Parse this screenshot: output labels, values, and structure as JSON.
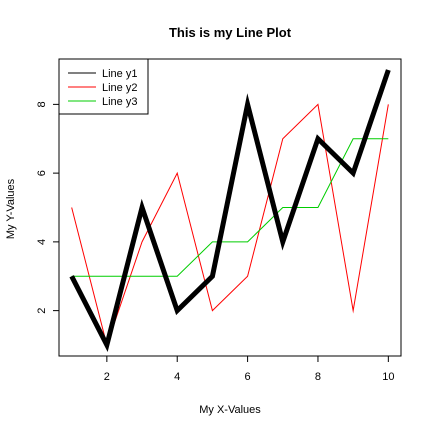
{
  "chart_data": {
    "type": "line",
    "title": "This is my Line Plot",
    "xlabel": "My X-Values",
    "ylabel": "My Y-Values",
    "x": [
      1,
      2,
      3,
      4,
      5,
      6,
      7,
      8,
      9,
      10
    ],
    "xlim": [
      0.64,
      10.36
    ],
    "ylim": [
      0.68,
      9.32
    ],
    "xticks": [
      2,
      4,
      6,
      8,
      10
    ],
    "yticks": [
      2,
      4,
      6,
      8
    ],
    "grid": false,
    "legend_position": "top-left",
    "series": [
      {
        "name": "Line y1",
        "color": "#000000",
        "values": [
          3,
          1,
          5,
          2,
          3,
          8,
          4,
          7,
          6,
          9
        ]
      },
      {
        "name": "Line y2",
        "color": "#ff0000",
        "values": [
          5,
          1,
          4,
          6,
          2,
          3,
          7,
          8,
          2,
          8
        ]
      },
      {
        "name": "Line y3",
        "color": "#00cd00",
        "values": [
          3,
          3,
          3,
          3,
          4,
          4,
          5,
          5,
          7,
          7
        ]
      }
    ]
  }
}
